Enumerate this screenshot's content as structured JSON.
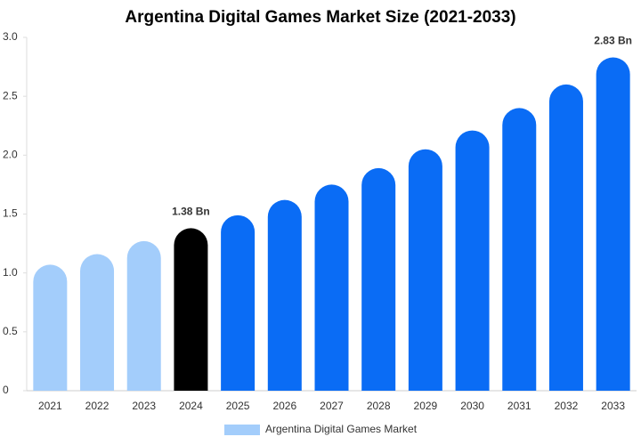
{
  "chart_data": {
    "type": "bar",
    "title": "Argentina Digital Games Market Size (2021-2033)",
    "categories": [
      "2021",
      "2022",
      "2023",
      "2024",
      "2025",
      "2026",
      "2027",
      "2028",
      "2029",
      "2030",
      "2031",
      "2032",
      "2033"
    ],
    "series": [
      {
        "name": "Argentina Digital Games Market",
        "color": "#a3cdfb",
        "colors": [
          "#a3cdfb",
          "#a3cdfb",
          "#a3cdfb",
          "#000000",
          "#0a6cf5",
          "#0a6cf5",
          "#0a6cf5",
          "#0a6cf5",
          "#0a6cf5",
          "#0a6cf5",
          "#0a6cf5",
          "#0a6cf5",
          "#0a6cf5"
        ],
        "values": [
          1.07,
          1.16,
          1.27,
          1.38,
          1.49,
          1.62,
          1.75,
          1.89,
          2.05,
          2.21,
          2.4,
          2.6,
          2.83
        ],
        "value_labels": [
          null,
          null,
          null,
          "1.38 Bn",
          null,
          null,
          null,
          null,
          null,
          null,
          null,
          null,
          "2.83 Bn"
        ]
      }
    ],
    "ylim": [
      0,
      3
    ],
    "yticks": [
      0,
      0.5,
      {
        "value": 1,
        "label": "1.0"
      },
      1.5,
      {
        "value": 2,
        "label": "2.0"
      },
      2.5,
      {
        "value": 3,
        "label": "3.0"
      }
    ],
    "grid": false,
    "legend": "bottom"
  }
}
